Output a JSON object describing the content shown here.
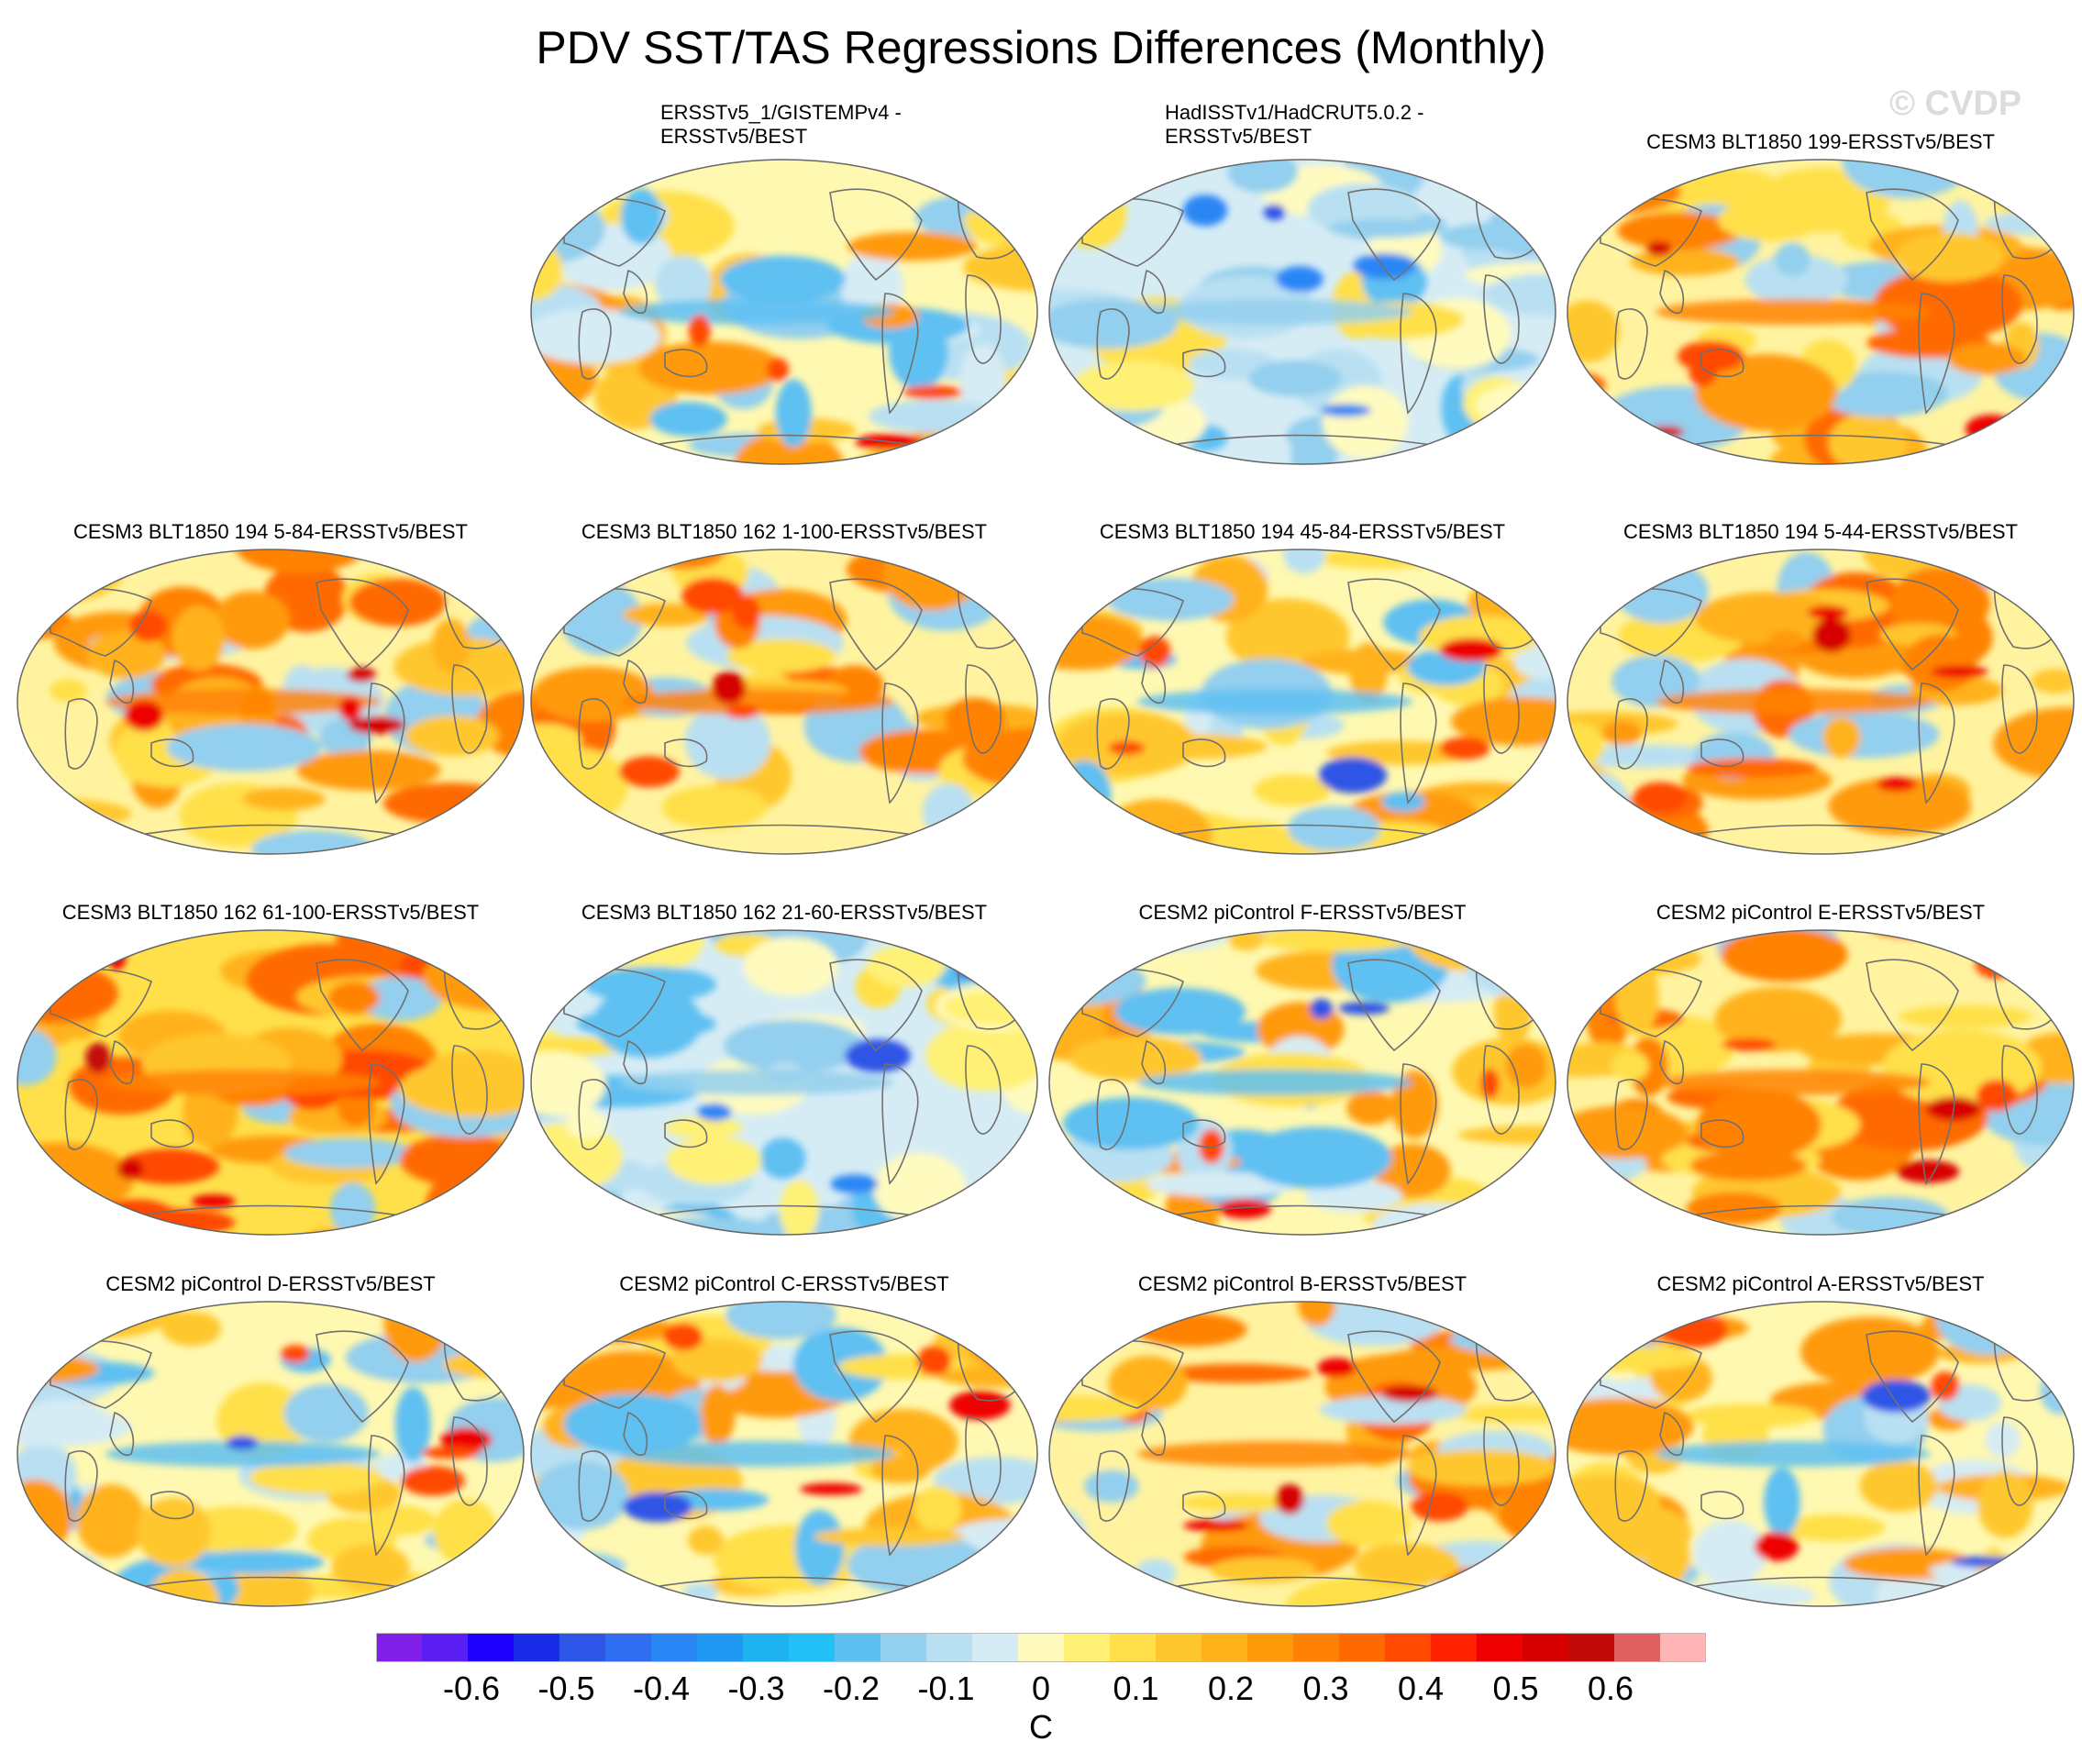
{
  "title": "PDV SST/TAS Regressions Differences (Monthly)",
  "watermark": "© CVDP",
  "units": "C",
  "colorbar": {
    "colors": [
      "#7f1fe8",
      "#5a1ef2",
      "#1f00ff",
      "#1a2be8",
      "#2d55e6",
      "#2f6ef0",
      "#2a86f5",
      "#2099f5",
      "#1fb2f0",
      "#22c0f7",
      "#5ec0f2",
      "#93cfee",
      "#b9e0f2",
      "#d6ecf5",
      "#fffbbf",
      "#fff176",
      "#ffe04a",
      "#ffc72e",
      "#ffb21a",
      "#ff9a0a",
      "#ff8206",
      "#ff6a00",
      "#ff4a00",
      "#ff2200",
      "#ee0000",
      "#d60000",
      "#c20a0a",
      "#e06060",
      "#ffb5b5"
    ],
    "labels": [
      "-0.6",
      "-0.5",
      "-0.4",
      "-0.3",
      "-0.2",
      "-0.1",
      "0",
      "0.1",
      "0.2",
      "0.3",
      "0.4",
      "0.5",
      "0.6"
    ],
    "label_values": [
      -0.6,
      -0.5,
      -0.4,
      -0.3,
      -0.2,
      -0.1,
      0,
      0.1,
      0.2,
      0.3,
      0.4,
      0.5,
      0.6
    ]
  },
  "panels": [
    {
      "id": "p1",
      "title_lines": [
        "ERSSTv5_1/GISTEMPv4 -",
        "ERSSTv5/BEST"
      ],
      "theme": "mixed"
    },
    {
      "id": "p2",
      "title_lines": [
        "HadISSTv1/HadCRUT5.0.2 -",
        "ERSSTv5/BEST"
      ],
      "theme": "cool"
    },
    {
      "id": "p3",
      "title_lines": [
        "CESM3 BLT1850 199-ERSSTv5/BEST"
      ],
      "theme": "warm"
    },
    {
      "id": "p4",
      "title_lines": [
        "CESM3 BLT1850 194 5-84-ERSSTv5/BEST"
      ],
      "theme": "warm"
    },
    {
      "id": "p5",
      "title_lines": [
        "CESM3 BLT1850 162 1-100-ERSSTv5/BEST"
      ],
      "theme": "warm"
    },
    {
      "id": "p6",
      "title_lines": [
        "CESM3 BLT1850 194 45-84-ERSSTv5/BEST"
      ],
      "theme": "mixed"
    },
    {
      "id": "p7",
      "title_lines": [
        "CESM3 BLT1850 194 5-44-ERSSTv5/BEST"
      ],
      "theme": "warm"
    },
    {
      "id": "p8",
      "title_lines": [
        "CESM3 BLT1850 162 61-100-ERSSTv5/BEST"
      ],
      "theme": "hot"
    },
    {
      "id": "p9",
      "title_lines": [
        "CESM3 BLT1850 162 21-60-ERSSTv5/BEST"
      ],
      "theme": "cool"
    },
    {
      "id": "p10",
      "title_lines": [
        "CESM2 piControl F-ERSSTv5/BEST"
      ],
      "theme": "mixed"
    },
    {
      "id": "p11",
      "title_lines": [
        "CESM2 piControl E-ERSSTv5/BEST"
      ],
      "theme": "warm"
    },
    {
      "id": "p12",
      "title_lines": [
        "CESM2 piControl D-ERSSTv5/BEST"
      ],
      "theme": "mixed"
    },
    {
      "id": "p13",
      "title_lines": [
        "CESM2 piControl C-ERSSTv5/BEST"
      ],
      "theme": "mixed"
    },
    {
      "id": "p14",
      "title_lines": [
        "CESM2 piControl B-ERSSTv5/BEST"
      ],
      "theme": "warm"
    },
    {
      "id": "p15",
      "title_lines": [
        "CESM2 piControl A-ERSSTv5/BEST"
      ],
      "theme": "mixed"
    }
  ]
}
